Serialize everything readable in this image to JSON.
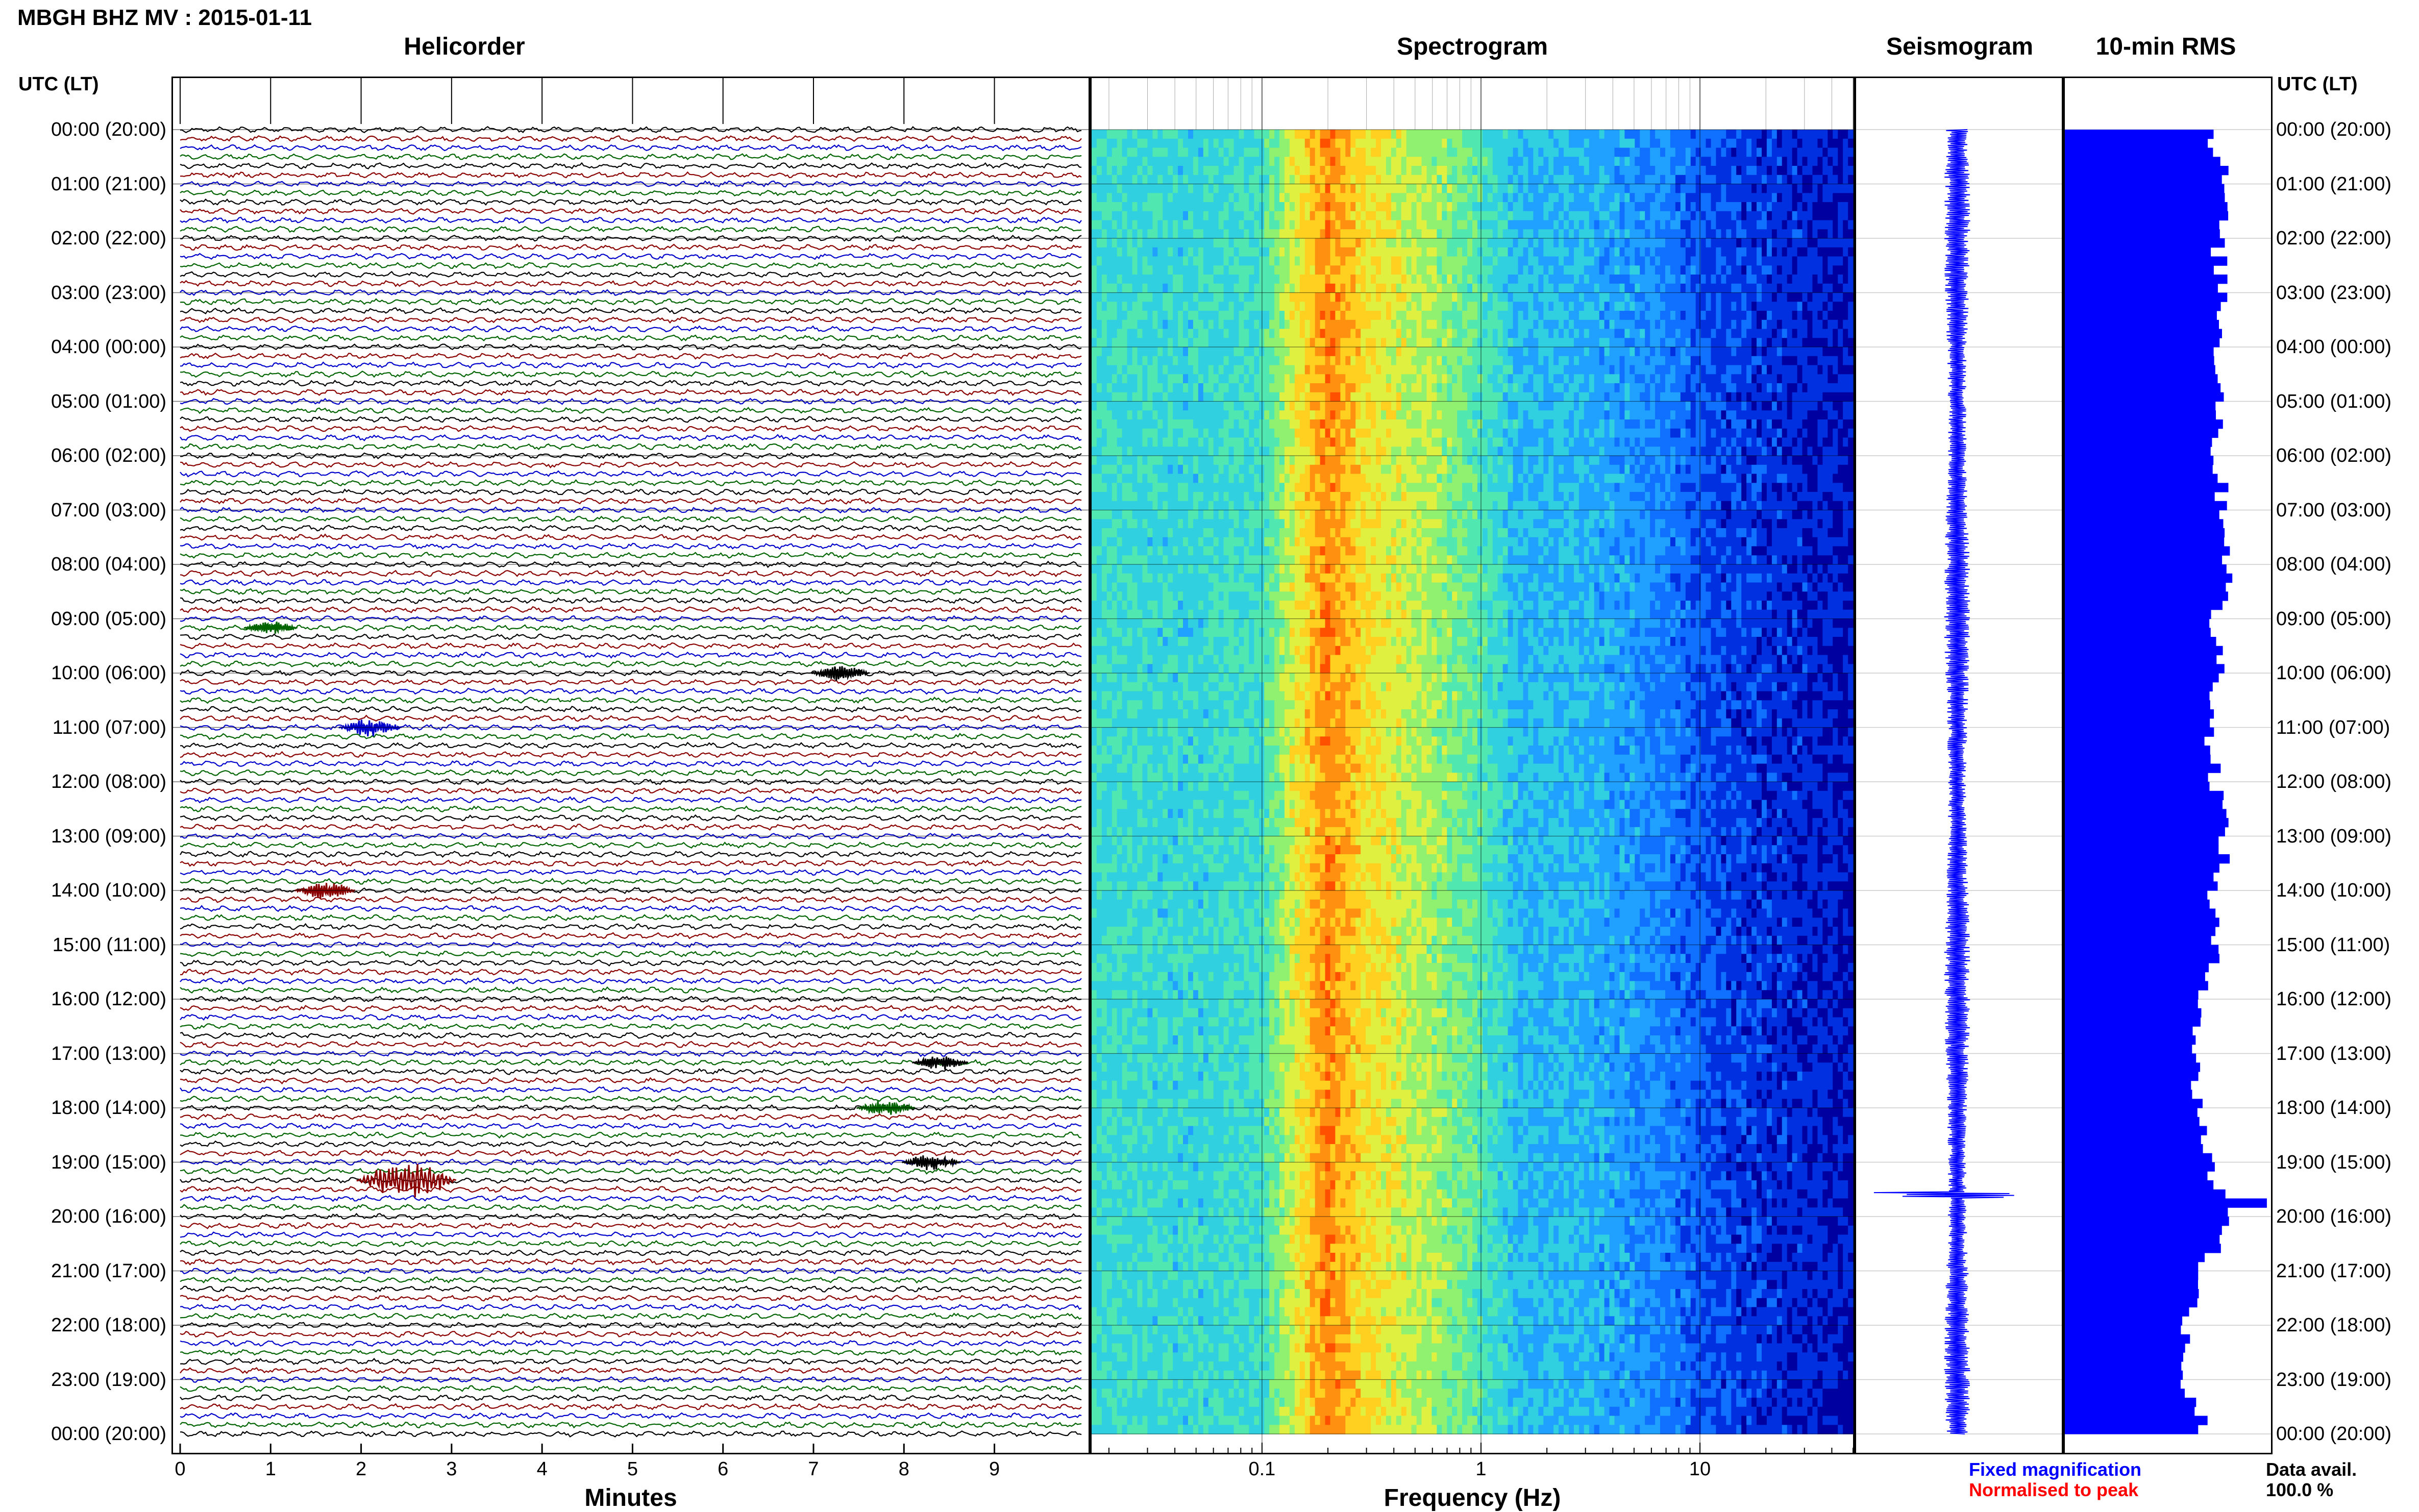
{
  "header": {
    "title": "MBGH BHZ MV : 2015-01-11"
  },
  "axis_headers": {
    "left_utc": "UTC (LT)",
    "right_utc": "UTC (LT)"
  },
  "time_labels": [
    "00:00 (20:00)",
    "01:00 (21:00)",
    "02:00 (22:00)",
    "03:00 (23:00)",
    "04:00 (00:00)",
    "05:00 (01:00)",
    "06:00 (02:00)",
    "07:00 (03:00)",
    "08:00 (04:00)",
    "09:00 (05:00)",
    "10:00 (06:00)",
    "11:00 (07:00)",
    "12:00 (08:00)",
    "13:00 (09:00)",
    "14:00 (10:00)",
    "15:00 (11:00)",
    "16:00 (12:00)",
    "17:00 (13:00)",
    "18:00 (14:00)",
    "19:00 (15:00)",
    "20:00 (16:00)",
    "21:00 (17:00)",
    "22:00 (18:00)",
    "23:00 (19:00)",
    "00:00 (20:00)"
  ],
  "legend": {
    "fixed": "Fixed magnification",
    "normalised": "Normalised to peak",
    "fixed_color": "#0000ff",
    "normalised_color": "#ff0000"
  },
  "data_availability": {
    "label": "Data avail.",
    "value": "100.0 %"
  },
  "chart_data": [
    {
      "type": "line",
      "title": "Helicorder",
      "xlabel": "Minutes",
      "xticks": [
        0,
        1,
        2,
        3,
        4,
        5,
        6,
        7,
        8,
        9
      ],
      "xlim": [
        0,
        10
      ],
      "trace_colors": [
        "#000000",
        "#8b0000",
        "#0000cc",
        "#006400"
      ],
      "rows_per_hour": 6,
      "hours": 24,
      "events": [
        {
          "hour": 19,
          "row": 2,
          "minute": 2.5,
          "color": "#8b0000",
          "amp": 3.0
        },
        {
          "hour": 10,
          "row": 0,
          "minute": 7.3,
          "color": "#000000",
          "amp": 1.2
        },
        {
          "hour": 11,
          "row": 0,
          "minute": 2.1,
          "color": "#0000cc",
          "amp": 1.4
        },
        {
          "hour": 14,
          "row": 0,
          "minute": 1.6,
          "color": "#8b0000",
          "amp": 1.3
        },
        {
          "hour": 17,
          "row": 1,
          "minute": 8.4,
          "color": "#000000",
          "amp": 1.1
        },
        {
          "hour": 18,
          "row": 0,
          "minute": 7.8,
          "color": "#006400",
          "amp": 1.2
        },
        {
          "hour": 19,
          "row": 0,
          "minute": 8.3,
          "color": "#000000",
          "amp": 1.2
        },
        {
          "hour": 9,
          "row": 1,
          "minute": 1.0,
          "color": "#006400",
          "amp": 1.0
        }
      ]
    },
    {
      "type": "heatmap",
      "title": "Spectrogram",
      "xlabel": "Frequency (Hz)",
      "xscale": "log",
      "xlim": [
        0.01667,
        50
      ],
      "xticks": [
        0.1,
        1,
        10
      ],
      "xtick_labels": [
        "0.1",
        "1",
        "10"
      ],
      "colormap": [
        "#0000a0",
        "#0030e0",
        "#1070ff",
        "#20a0ff",
        "#30d0e0",
        "#50e8b0",
        "#90f070",
        "#e0f040",
        "#ffd020",
        "#ff9010",
        "#ff5000"
      ],
      "spectrum_profile": [
        {
          "f": 0.0167,
          "level": 4.4
        },
        {
          "f": 0.05,
          "level": 4.2
        },
        {
          "f": 0.1,
          "level": 4.6
        },
        {
          "f": 0.13,
          "level": 6.5
        },
        {
          "f": 0.2,
          "level": 9.2
        },
        {
          "f": 0.3,
          "level": 7.5
        },
        {
          "f": 0.5,
          "level": 6.6
        },
        {
          "f": 0.8,
          "level": 5.6
        },
        {
          "f": 1.5,
          "level": 3.6
        },
        {
          "f": 3,
          "level": 3.4
        },
        {
          "f": 6,
          "level": 2.6
        },
        {
          "f": 12,
          "level": 1.3
        },
        {
          "f": 50,
          "level": 0.4
        }
      ]
    },
    {
      "type": "line",
      "title": "Seismogram",
      "color": "#0000ff",
      "spike_hour": 19.6
    },
    {
      "type": "bar",
      "title": "10-min RMS",
      "color": "#0000ff",
      "orientation": "horizontal",
      "hourly_values": [
        0.72,
        0.78,
        0.74,
        0.77,
        0.75,
        0.76,
        0.73,
        0.78,
        0.8,
        0.72,
        0.76,
        0.7,
        0.74,
        0.78,
        0.72,
        0.72,
        0.68,
        0.62,
        0.66,
        0.7,
        0.82,
        0.64,
        0.6,
        0.58,
        0.7
      ]
    }
  ]
}
